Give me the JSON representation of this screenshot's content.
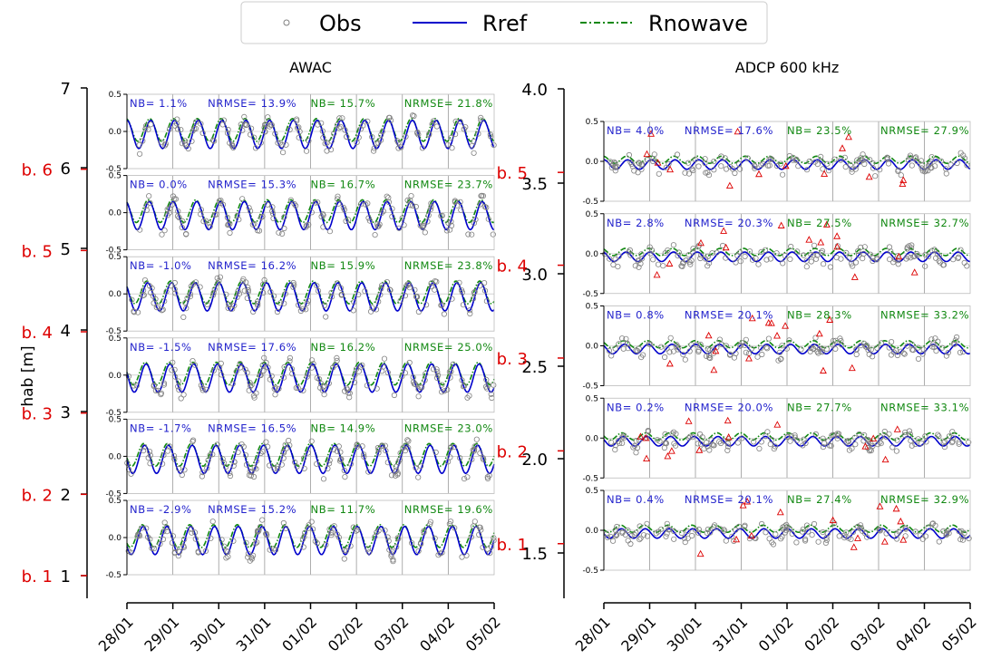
{
  "legend": {
    "entries": [
      {
        "label": "Obs",
        "color": "#808080",
        "marker": "circle"
      },
      {
        "label": "Rref",
        "color": "#0000cc",
        "style": "solid"
      },
      {
        "label": "Rnowave",
        "color": "#118811",
        "style": "dashdot"
      }
    ]
  },
  "ylabel": "hab [m]",
  "colors": {
    "nb_blue": "#2222cc",
    "nb_green": "#118811",
    "beam_red": "#dd0000",
    "storm_shade": "#e5e5e5"
  },
  "chart_data": [
    {
      "type": "line",
      "title": "AWAC",
      "hab_ticks": [
        "7",
        "6",
        "5",
        "4",
        "3",
        "2",
        "1"
      ],
      "hab_range": [
        0.5,
        7
      ],
      "x_ticks": [
        "28/01",
        "29/01",
        "30/01",
        "31/01",
        "01/02",
        "02/02",
        "03/02",
        "04/02",
        "05/02"
      ],
      "x_range_days": [
        0,
        8
      ],
      "shaded_period": [
        "30/01 12:00",
        "03/02 00:00"
      ],
      "panel_ylim": [
        -0.5,
        0.5
      ],
      "panel_yticks": [
        "0.5",
        "0.0",
        "-0.5"
      ],
      "panels": [
        {
          "beam": "b. 6",
          "hab": 6.0,
          "nb_ref": "NB= 1.1%",
          "nrmse_ref": "NRMSE= 13.9%",
          "nb_nowave": "NB= 15.7%",
          "nrmse_nowave": "NRMSE= 21.8%"
        },
        {
          "beam": "b. 5",
          "hab": 5.0,
          "nb_ref": "NB= 0.0%",
          "nrmse_ref": "NRMSE= 15.3%",
          "nb_nowave": "NB= 16.7%",
          "nrmse_nowave": "NRMSE= 23.7%"
        },
        {
          "beam": "b. 4",
          "hab": 4.0,
          "nb_ref": "NB= -1.0%",
          "nrmse_ref": "NRMSE= 16.2%",
          "nb_nowave": "NB= 15.9%",
          "nrmse_nowave": "NRMSE= 23.8%"
        },
        {
          "beam": "b. 3",
          "hab": 3.0,
          "nb_ref": "NB= -1.5%",
          "nrmse_ref": "NRMSE= 17.6%",
          "nb_nowave": "NB= 16.2%",
          "nrmse_nowave": "NRMSE= 25.0%"
        },
        {
          "beam": "b. 2",
          "hab": 2.0,
          "nb_ref": "NB= -1.7%",
          "nrmse_ref": "NRMSE= 16.5%",
          "nb_nowave": "NB= 14.9%",
          "nrmse_nowave": "NRMSE= 23.0%"
        },
        {
          "beam": "b. 1",
          "hab": 1.0,
          "nb_ref": "NB= -2.9%",
          "nrmse_ref": "NRMSE= 15.2%",
          "nb_nowave": "NB= 11.7%",
          "nrmse_nowave": "NRMSE= 19.6%"
        }
      ]
    },
    {
      "type": "line",
      "title": "ADCP 600 kHz",
      "hab_ticks": [
        "4.0",
        "3.5",
        "3.0",
        "2.5",
        "2.0",
        "1.5"
      ],
      "hab_range": [
        1.0,
        4.0
      ],
      "x_ticks": [
        "28/01",
        "29/01",
        "30/01",
        "31/01",
        "01/02",
        "02/02",
        "03/02",
        "04/02",
        "05/02"
      ],
      "x_range_days": [
        0,
        8
      ],
      "shaded_period": [
        "30/01 12:00",
        "03/02 00:00"
      ],
      "panel_ylim": [
        -0.5,
        0.5
      ],
      "panel_yticks": [
        "0.5",
        "0.0",
        "-0.5"
      ],
      "panels": [
        {
          "beam": "b. 5",
          "hab": 3.55,
          "nb_ref": "NB= 4.0%",
          "nrmse_ref": "NRMSE= 17.6%",
          "nb_nowave": "NB= 23.5%",
          "nrmse_nowave": "NRMSE= 27.9%"
        },
        {
          "beam": "b. 4",
          "hab": 3.05,
          "nb_ref": "NB= 2.8%",
          "nrmse_ref": "NRMSE= 20.3%",
          "nb_nowave": "NB= 27.5%",
          "nrmse_nowave": "NRMSE= 32.7%"
        },
        {
          "beam": "b. 3",
          "hab": 2.55,
          "nb_ref": "NB= 0.8%",
          "nrmse_ref": "NRMSE= 20.1%",
          "nb_nowave": "NB= 28.3%",
          "nrmse_nowave": "NRMSE= 33.2%"
        },
        {
          "beam": "b. 2",
          "hab": 2.05,
          "nb_ref": "NB= 0.2%",
          "nrmse_ref": "NRMSE= 20.0%",
          "nb_nowave": "NB= 27.7%",
          "nrmse_nowave": "NRMSE= 33.1%"
        },
        {
          "beam": "b. 1",
          "hab": 1.55,
          "nb_ref": "NB= 0.4%",
          "nrmse_ref": "NRMSE= 20.1%",
          "nb_nowave": "NB= 27.4%",
          "nrmse_nowave": "NRMSE= 32.9%"
        }
      ]
    }
  ]
}
